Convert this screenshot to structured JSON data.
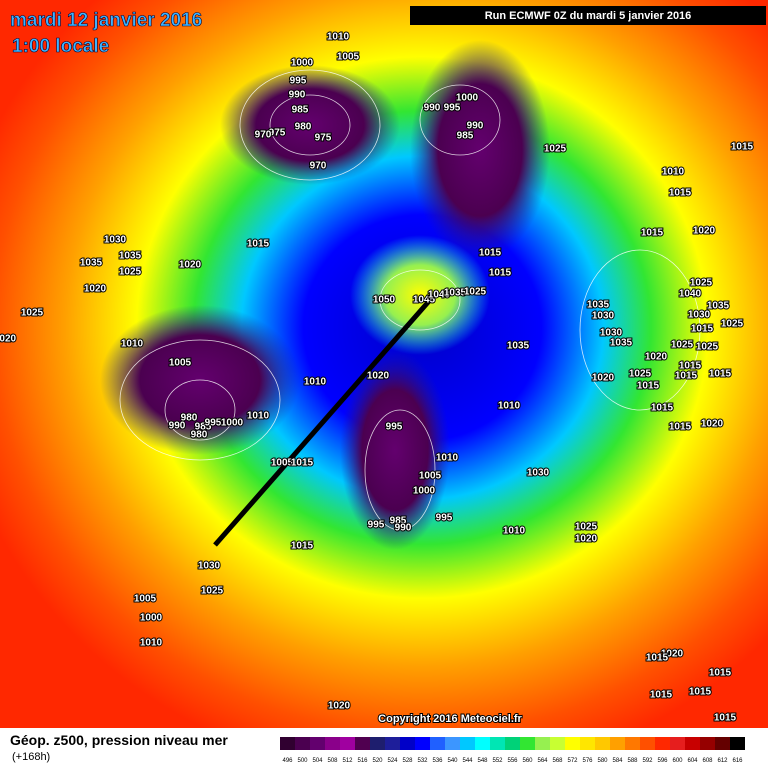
{
  "header": {
    "date": "mardi 12 janvier 2016",
    "time": "1:00 locale",
    "run": "Run ECMWF 0Z du mardi 5 janvier 2016"
  },
  "footer": {
    "field": "Géop. z500, pression niveau mer",
    "lead": "(+168h)",
    "copyright": "Copyright 2016 Meteociel.fr"
  },
  "isobar_labels": [
    1010,
    1005,
    1000,
    995,
    990,
    985,
    980,
    975,
    975,
    970,
    970,
    990,
    995,
    1000,
    985,
    990,
    1025,
    1015,
    1010,
    1015,
    1015,
    1020,
    1030,
    1035,
    1035,
    1025,
    1020,
    1015,
    1015,
    1015,
    1020,
    1025,
    1020,
    1050,
    1045,
    1040,
    1035,
    1025,
    1035,
    1030,
    1025,
    1040,
    1030,
    1035,
    1025,
    1015,
    1030,
    1035,
    1035,
    1025,
    1025,
    1010,
    1005,
    1020,
    1015,
    1015,
    1010,
    1020,
    1025,
    1020,
    1015,
    1015,
    1015,
    1015,
    1020,
    1010,
    980,
    990,
    985,
    980,
    995,
    1000,
    1010,
    995,
    1010,
    1005,
    1015,
    1005,
    1000,
    1030,
    995,
    985,
    990,
    995,
    1010,
    1025,
    1020,
    1015,
    1030,
    1025,
    1005,
    1000,
    1010,
    1020,
    1015,
    1015,
    1015,
    1015,
    1015,
    1020
  ],
  "color_scale": {
    "values": [
      496,
      500,
      504,
      508,
      512,
      516,
      520,
      524,
      528,
      532,
      536,
      540,
      544,
      548,
      552,
      556,
      560,
      564,
      568,
      572,
      576,
      580,
      584,
      588,
      592,
      596,
      600,
      604,
      608,
      612,
      616
    ],
    "colors": [
      "#300030",
      "#4b0050",
      "#63006e",
      "#8a008a",
      "#a000a0",
      "#500050",
      "#1e1e6e",
      "#1e1e9a",
      "#0000c8",
      "#0000ff",
      "#2060ff",
      "#3c96ff",
      "#00c8ff",
      "#00ffff",
      "#00e6b4",
      "#00d278",
      "#32e632",
      "#96f050",
      "#c8ff32",
      "#ffff00",
      "#ffe600",
      "#ffc800",
      "#ffa000",
      "#ff7800",
      "#ff5000",
      "#ff2800",
      "#e61e1e",
      "#c80000",
      "#960000",
      "#640000",
      "#000000"
    ]
  }
}
